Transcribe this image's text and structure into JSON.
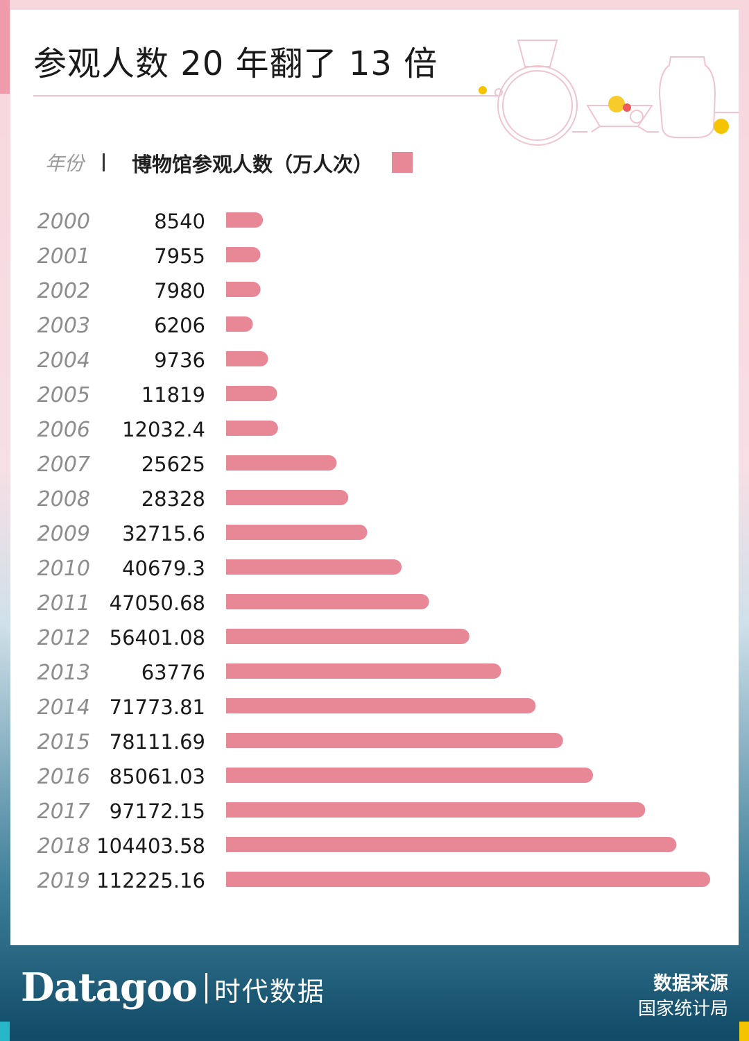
{
  "title": "参观人数 20 年翻了 13 倍",
  "header": {
    "year_label": "年份",
    "metric_label": "博物馆参观人数（万人次）"
  },
  "colors": {
    "bar": "#e88896",
    "accent_pink": "#f0c4cf",
    "footer_bg": "#0f4a66"
  },
  "chart_data": {
    "type": "bar",
    "orientation": "horizontal",
    "categories": [
      "2000",
      "2001",
      "2002",
      "2003",
      "2004",
      "2005",
      "2006",
      "2007",
      "2008",
      "2009",
      "2010",
      "2011",
      "2012",
      "2013",
      "2014",
      "2015",
      "2016",
      "2017",
      "2018",
      "2019"
    ],
    "value_labels": [
      "8540",
      "7955",
      "7980",
      "6206",
      "9736",
      "11819",
      "12032.4",
      "25625",
      "28328",
      "32715.6",
      "40679.3",
      "47050.68",
      "56401.08",
      "63776",
      "71773.81",
      "78111.69",
      "85061.03",
      "97172.15",
      "104403.58",
      "112225.16"
    ],
    "series": [
      {
        "values": [
          8540,
          7955,
          7980,
          6206,
          9736,
          11819,
          12032.4,
          25625,
          28328,
          32715.6,
          40679.3,
          47050.68,
          56401.08,
          63776,
          71773.81,
          78111.69,
          85061.03,
          97172.15,
          104403.58,
          112225.16
        ]
      }
    ],
    "xlim": [
      0,
      112225.16
    ],
    "grid": false,
    "legend_position": "top"
  },
  "footer": {
    "brand": "Datagoo",
    "brand_cn": "时代数据",
    "source_title": "数据来源",
    "source_value": "国家统计局"
  }
}
